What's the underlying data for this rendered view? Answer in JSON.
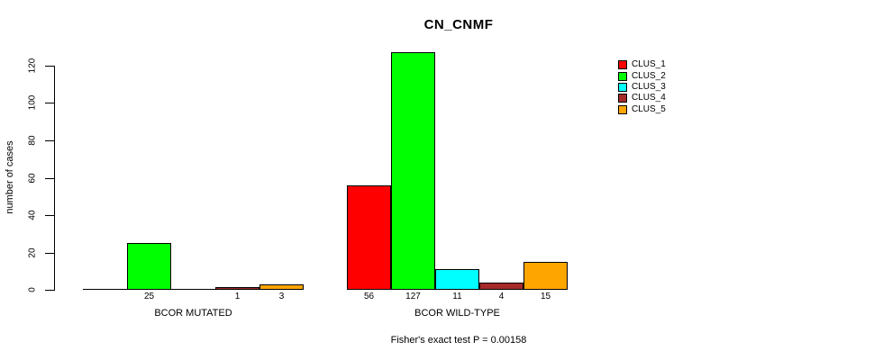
{
  "figure": {
    "background": "#FFFFFF",
    "text_color": "#000000"
  },
  "chart_data": {
    "type": "bar",
    "title": "CN_CNMF",
    "xlabel": "",
    "ylabel": "number of cases",
    "ylim": [
      0,
      127
    ],
    "yticks": [
      0,
      20,
      40,
      60,
      80,
      100,
      120
    ],
    "grid": false,
    "legend_position": "right",
    "axis_color": "#000000",
    "bar_border_color": "#000000",
    "categories": [
      "BCOR MUTATED",
      "BCOR WILD-TYPE"
    ],
    "series": [
      {
        "name": "CLUS_1",
        "color": "#FF0000",
        "values": [
          0,
          56
        ]
      },
      {
        "name": "CLUS_2",
        "color": "#00FF00",
        "values": [
          25,
          127
        ]
      },
      {
        "name": "CLUS_3",
        "color": "#00FFFF",
        "values": [
          0,
          11
        ]
      },
      {
        "name": "CLUS_4",
        "color": "#A52A2A",
        "values": [
          1,
          4
        ]
      },
      {
        "name": "CLUS_5",
        "color": "#FFA500",
        "values": [
          3,
          15
        ]
      }
    ],
    "value_labels": [
      [
        "",
        "56"
      ],
      [
        "25",
        "127"
      ],
      [
        "",
        "11"
      ],
      [
        "1",
        "4"
      ],
      [
        "3",
        "15"
      ]
    ],
    "annotation": "Fisher's exact test P = 0.00158"
  }
}
